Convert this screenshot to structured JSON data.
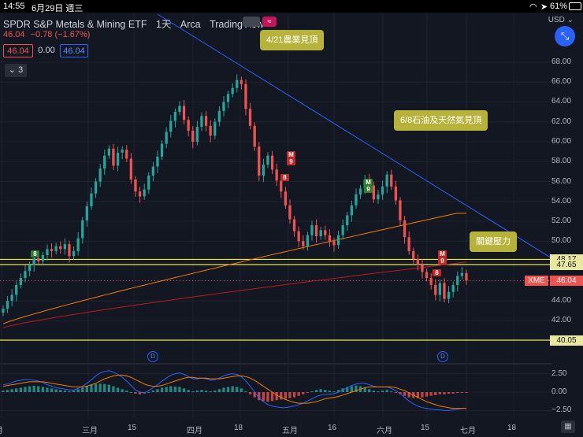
{
  "status_bar": {
    "time": "14:55",
    "date": "6月29日 週三",
    "battery": "61%"
  },
  "header": {
    "title": "SPDR S&P Metals & Mining ETF",
    "interval": "1天",
    "exchange": "Arca",
    "source": "TradingView",
    "price": "46.04",
    "change": "−0.78 (−1.67%)",
    "sell_price": "46.04",
    "spread": "0.00",
    "buy_price": "46.04",
    "indicator_count": "3"
  },
  "currency": "USD",
  "price_axis": [
    "68.00",
    "66.00",
    "64.00",
    "62.00",
    "60.00",
    "58.00",
    "56.00",
    "54.00",
    "52.00",
    "50.00",
    "48.00",
    "46.00",
    "44.00",
    "42.00",
    "40.00"
  ],
  "macd_axis": [
    "2.50",
    "0.00",
    "−2.50"
  ],
  "price_badges": [
    {
      "label": "48.17",
      "value": 48.17
    },
    {
      "label": "47.65",
      "value": 47.65
    },
    {
      "label": "40.05",
      "value": 40.05
    }
  ],
  "symbol_badge": {
    "symbol": "XME",
    "price": "46.04"
  },
  "x_axis": [
    "月",
    "三月",
    "15",
    "四月",
    "18",
    "五月",
    "16",
    "六月",
    "15",
    "七月",
    "18"
  ],
  "annotations": [
    {
      "text": "4/21農業見頂"
    },
    {
      "text": "6/8石油及天然氣見頂"
    },
    {
      "text": "關鍵壓力"
    }
  ],
  "td_marks": [
    {
      "text": "8",
      "kind": "green"
    },
    {
      "text": "M",
      "kind": "red"
    },
    {
      "text": "9",
      "kind": "red"
    },
    {
      "text": "8",
      "kind": "red"
    },
    {
      "text": "M",
      "kind": "green"
    },
    {
      "text": "9",
      "kind": "green"
    },
    {
      "text": "M",
      "kind": "red"
    },
    {
      "text": "9",
      "kind": "red"
    },
    {
      "text": "8",
      "kind": "red"
    }
  ],
  "dividend_marker": "D",
  "colors": {
    "up": "#26a69a",
    "down": "#ef5350",
    "trend": "#2962ff",
    "ma_orange": "#f57c00",
    "ma_red": "#b71c1c",
    "level": "#e8e84a",
    "accent": "#2962ff"
  },
  "chart_data": {
    "type": "candlestick",
    "y_range": [
      41,
      69.5
    ],
    "closes": [
      43.2,
      44.0,
      44.6,
      45.6,
      46.3,
      47.0,
      47.6,
      48.3,
      48.0,
      48.6,
      49.2,
      49.0,
      49.5,
      49.2,
      49.7,
      48.5,
      49.0,
      50.3,
      52.1,
      53.5,
      54.8,
      56.0,
      57.3,
      58.6,
      59.3,
      57.6,
      58.9,
      59.2,
      58.3,
      56.2,
      55.0,
      54.5,
      55.2,
      56.6,
      57.5,
      58.5,
      59.8,
      61.0,
      62.1,
      63.0,
      63.6,
      62.2,
      61.1,
      60.0,
      61.5,
      62.6,
      61.6,
      60.6,
      62.0,
      63.1,
      64.0,
      64.8,
      65.4,
      66.2,
      65.8,
      63.3,
      61.6,
      59.5,
      56.6,
      57.7,
      58.6,
      57.2,
      56.1,
      55.0,
      53.6,
      52.2,
      51.0,
      50.0,
      49.5,
      50.6,
      51.6,
      50.5,
      51.1,
      50.6,
      50.0,
      49.6,
      50.6,
      51.6,
      52.6,
      53.6,
      54.7,
      55.3,
      56.2,
      55.6,
      54.2,
      54.7,
      55.5,
      56.7,
      55.5,
      54.1,
      52.1,
      50.4,
      49.0,
      48.2,
      47.6,
      46.9,
      46.3,
      45.6,
      44.6,
      45.8,
      44.2,
      44.9,
      45.6,
      46.5,
      46.8,
      46.04
    ],
    "ma_orange_range": [
      41.7,
      52.8
    ],
    "ma_red_range": [
      41.3,
      47.9
    ],
    "levels": [
      48.17,
      47.65,
      40.05
    ],
    "macd_hist": [
      0.2,
      0.3,
      0.4,
      0.5,
      0.6,
      0.7,
      0.8,
      0.85,
      0.8,
      0.7,
      0.6,
      0.5,
      0.4,
      0.3,
      0.2,
      0.1,
      0.2,
      0.4,
      0.6,
      0.8,
      1.0,
      1.1,
      1.15,
      1.1,
      1.0,
      0.8,
      0.6,
      0.4,
      0.2,
      0.0,
      -0.2,
      -0.3,
      -0.2,
      0.0,
      0.2,
      0.4,
      0.6,
      0.7,
      0.8,
      0.75,
      0.7,
      0.5,
      0.3,
      0.1,
      0.2,
      0.3,
      0.2,
      0.1,
      0.2,
      0.4,
      0.6,
      0.7,
      0.8,
      0.7,
      0.5,
      0.1,
      -0.3,
      -0.7,
      -1.1,
      -1.2,
      -1.3,
      -1.2,
      -1.1,
      -1.0,
      -0.9,
      -0.8,
      -0.7,
      -0.5,
      -0.3,
      -0.1,
      0.1,
      0.3,
      0.4,
      0.3,
      0.2,
      0.1,
      0.3,
      0.5,
      0.7,
      0.8,
      0.9,
      0.8,
      0.6,
      0.4,
      0.2,
      0.1,
      0.2,
      0.3,
      0.1,
      -0.1,
      -0.3,
      -0.5,
      -0.7,
      -0.8,
      -0.8,
      -0.7,
      -0.6,
      -0.5,
      -0.4,
      -0.3,
      -0.3,
      -0.2,
      -0.2,
      -0.1,
      -0.1,
      -0.1
    ],
    "macd_line": [
      1.0,
      1.1,
      1.3,
      1.5,
      1.6,
      1.7,
      1.7,
      1.6,
      1.5,
      1.3,
      1.0,
      0.8,
      0.6,
      0.5,
      0.4,
      0.3,
      0.3,
      0.5,
      0.8,
      1.2,
      1.7,
      2.2,
      2.6,
      2.8,
      2.9,
      2.7,
      2.4,
      2.0,
      1.5,
      0.9,
      0.3,
      0.0,
      -0.1,
      0.2,
      0.6,
      1.0,
      1.5,
      1.9,
      2.3,
      2.5,
      2.6,
      2.4,
      2.1,
      1.8,
      1.8,
      1.9,
      1.8,
      1.6,
      1.7,
      1.9,
      2.2,
      2.4,
      2.5,
      2.4,
      2.1,
      1.5,
      0.8,
      0.0,
      -0.8,
      -1.3,
      -1.7,
      -1.9,
      -2.0,
      -2.1,
      -2.1,
      -2.0,
      -1.9,
      -1.7,
      -1.5,
      -1.2,
      -0.9,
      -0.6,
      -0.4,
      -0.3,
      -0.3,
      -0.2,
      0.0,
      0.3,
      0.6,
      0.9,
      1.1,
      1.2,
      1.2,
      1.0,
      0.8,
      0.7,
      0.7,
      0.7,
      0.5,
      0.2,
      -0.2,
      -0.7,
      -1.2,
      -1.6,
      -1.9,
      -2.1,
      -2.2,
      -2.3,
      -2.4,
      -2.4,
      -2.5,
      -2.5,
      -2.4,
      -2.3,
      -2.2,
      -2.2
    ],
    "macd_signal": [
      0.8,
      0.9,
      1.0,
      1.1,
      1.2,
      1.3,
      1.4,
      1.4,
      1.4,
      1.4,
      1.3,
      1.2,
      1.1,
      1.0,
      0.9,
      0.8,
      0.7,
      0.7,
      0.7,
      0.8,
      1.0,
      1.2,
      1.5,
      1.8,
      2.0,
      2.2,
      2.3,
      2.3,
      2.2,
      2.0,
      1.7,
      1.4,
      1.1,
      0.9,
      0.8,
      0.8,
      0.9,
      1.1,
      1.3,
      1.5,
      1.7,
      1.9,
      2.0,
      2.0,
      1.9,
      1.9,
      1.9,
      1.8,
      1.8,
      1.8,
      1.9,
      2.0,
      2.1,
      2.2,
      2.2,
      2.1,
      1.9,
      1.6,
      1.2,
      0.8,
      0.4,
      0.0,
      -0.4,
      -0.7,
      -1.0,
      -1.2,
      -1.4,
      -1.5,
      -1.5,
      -1.5,
      -1.4,
      -1.3,
      -1.1,
      -0.9,
      -0.8,
      -0.7,
      -0.6,
      -0.4,
      -0.2,
      0.0,
      0.2,
      0.4,
      0.6,
      0.7,
      0.7,
      0.7,
      0.7,
      0.7,
      0.7,
      0.6,
      0.4,
      0.2,
      -0.1,
      -0.4,
      -0.7,
      -1.0,
      -1.3,
      -1.5,
      -1.7,
      -1.9,
      -2.0,
      -2.1,
      -2.2,
      -2.2,
      -2.2,
      -2.2
    ],
    "macd_range": [
      -3.2,
      3.2
    ]
  }
}
